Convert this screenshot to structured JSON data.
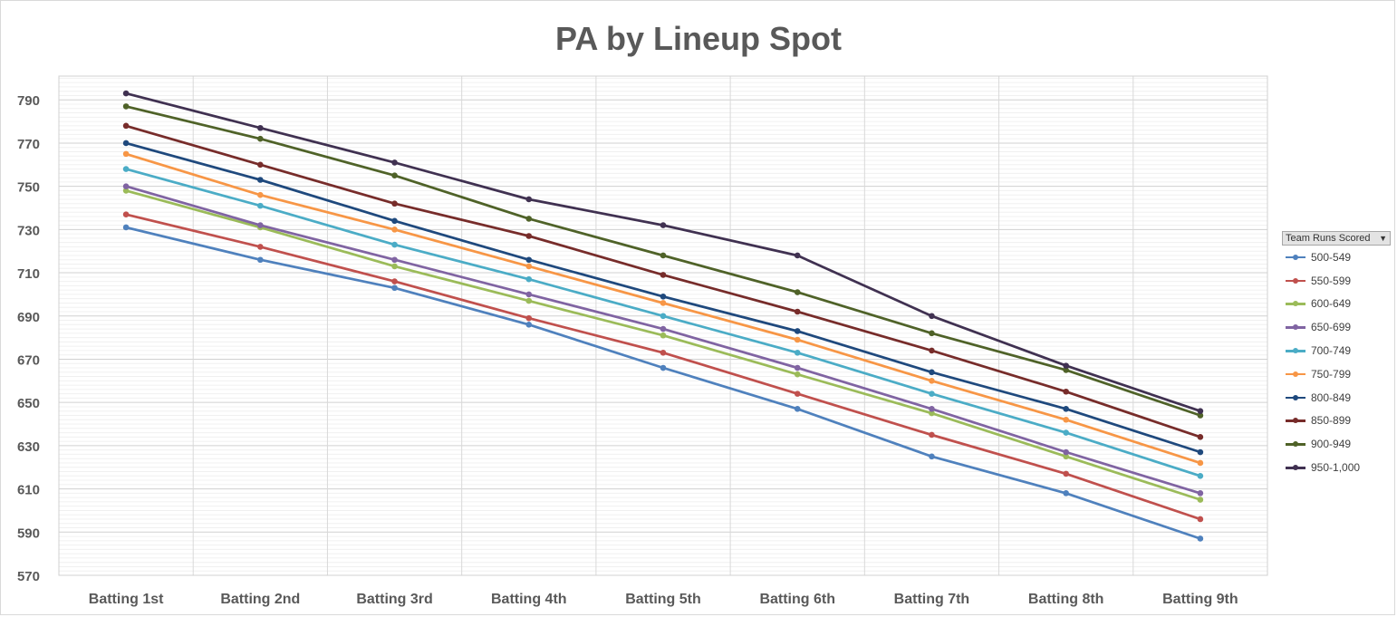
{
  "chart_data": {
    "type": "line",
    "title": "PA by Lineup Spot",
    "categories": [
      "Batting 1st",
      "Batting 2nd",
      "Batting 3rd",
      "Batting 4th",
      "Batting 5th",
      "Batting 6th",
      "Batting 7th",
      "Batting 8th",
      "Batting 9th"
    ],
    "yticks": [
      "570",
      "590",
      "610",
      "630",
      "650",
      "670",
      "690",
      "710",
      "730",
      "750",
      "770",
      "790"
    ],
    "ylim": [
      570,
      801
    ],
    "grid": true,
    "legend_title": "Team Runs Scored",
    "legend_position": "right",
    "series": [
      {
        "name": "500-549",
        "color": "#4f81bd",
        "values": [
          731,
          716,
          703,
          686,
          666,
          647,
          625,
          608,
          587
        ]
      },
      {
        "name": "550-599",
        "color": "#c0504d",
        "values": [
          737,
          722,
          706,
          689,
          673,
          654,
          635,
          617,
          596
        ]
      },
      {
        "name": "600-649",
        "color": "#9bbb59",
        "values": [
          748,
          731,
          713,
          697,
          681,
          663,
          645,
          625,
          605
        ]
      },
      {
        "name": "650-699",
        "color": "#8064a2",
        "values": [
          750,
          732,
          716,
          700,
          684,
          666,
          647,
          627,
          608
        ]
      },
      {
        "name": "700-749",
        "color": "#4bacc6",
        "values": [
          758,
          741,
          723,
          707,
          690,
          673,
          654,
          636,
          616
        ]
      },
      {
        "name": "750-799",
        "color": "#f79646",
        "values": [
          765,
          746,
          730,
          713,
          696,
          679,
          660,
          642,
          622
        ]
      },
      {
        "name": "800-849",
        "color": "#1f497d",
        "values": [
          770,
          753,
          734,
          716,
          699,
          683,
          664,
          647,
          627
        ]
      },
      {
        "name": "850-899",
        "color": "#772c2a",
        "values": [
          778,
          760,
          742,
          727,
          709,
          692,
          674,
          655,
          634
        ]
      },
      {
        "name": "900-949",
        "color": "#4f6228",
        "values": [
          787,
          772,
          755,
          735,
          718,
          701,
          682,
          665,
          644
        ]
      },
      {
        "name": "950-1,000",
        "color": "#403151",
        "values": [
          793,
          777,
          761,
          744,
          732,
          718,
          690,
          667,
          646
        ]
      }
    ]
  }
}
